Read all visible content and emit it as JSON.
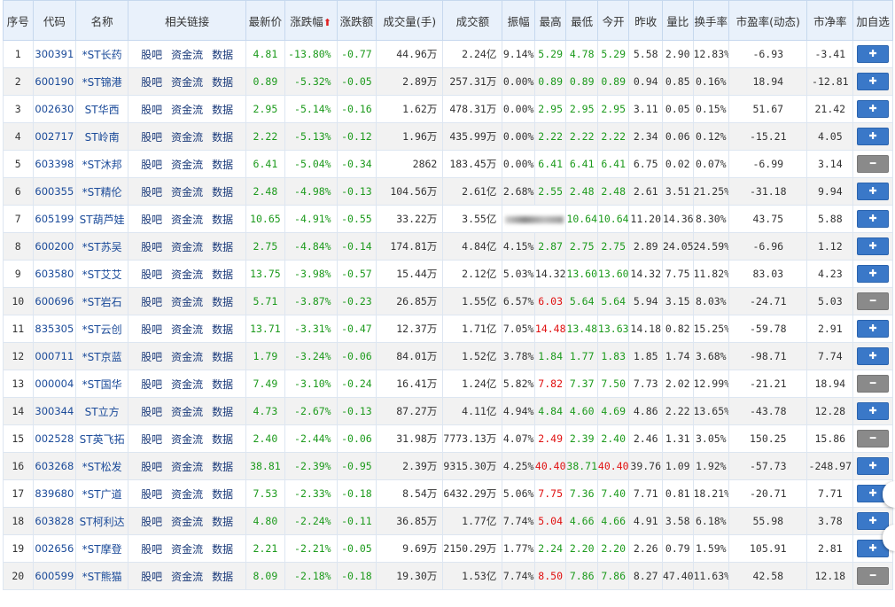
{
  "headers": [
    "序号",
    "代码",
    "名称",
    "相关链接",
    "最新价",
    "涨跌幅",
    "涨跌额",
    "成交量(手)",
    "成交额",
    "振幅",
    "最高",
    "最低",
    "今开",
    "昨收",
    "量比",
    "换手率",
    "市盈率(动态)",
    "市净率",
    "加自选"
  ],
  "sort_arrow": "⬆",
  "link_labels": [
    "股吧",
    "资金流",
    "数据"
  ],
  "rows": [
    {
      "idx": "1",
      "code": "300391",
      "name": "*ST长药",
      "price": "4.81",
      "pct": "-13.80%",
      "chg": "-0.77",
      "vol": "44.96万",
      "amt": "2.24亿",
      "amp": "9.14%",
      "high": "5.29",
      "low": "4.78",
      "open": "5.29",
      "prev": "5.58",
      "vr": "2.90",
      "turn": "12.83%",
      "pe": "-6.93",
      "pb": "-3.41",
      "added": false,
      "hc": "g",
      "lc": "g",
      "oc": "g"
    },
    {
      "idx": "2",
      "code": "600190",
      "name": "*ST锦港",
      "price": "0.89",
      "pct": "-5.32%",
      "chg": "-0.05",
      "vol": "2.89万",
      "amt": "257.31万",
      "amp": "0.00%",
      "high": "0.89",
      "low": "0.89",
      "open": "0.89",
      "prev": "0.94",
      "vr": "0.85",
      "turn": "0.16%",
      "pe": "18.94",
      "pb": "-12.81",
      "added": false,
      "hc": "g",
      "lc": "g",
      "oc": "g"
    },
    {
      "idx": "3",
      "code": "002630",
      "name": "ST华西",
      "price": "2.95",
      "pct": "-5.14%",
      "chg": "-0.16",
      "vol": "1.62万",
      "amt": "478.31万",
      "amp": "0.00%",
      "high": "2.95",
      "low": "2.95",
      "open": "2.95",
      "prev": "3.11",
      "vr": "0.05",
      "turn": "0.15%",
      "pe": "51.67",
      "pb": "21.42",
      "added": false,
      "hc": "g",
      "lc": "g",
      "oc": "g"
    },
    {
      "idx": "4",
      "code": "002717",
      "name": "ST岭南",
      "price": "2.22",
      "pct": "-5.13%",
      "chg": "-0.12",
      "vol": "1.96万",
      "amt": "435.99万",
      "amp": "0.00%",
      "high": "2.22",
      "low": "2.22",
      "open": "2.22",
      "prev": "2.34",
      "vr": "0.06",
      "turn": "0.12%",
      "pe": "-15.21",
      "pb": "4.05",
      "added": false,
      "hc": "g",
      "lc": "g",
      "oc": "g"
    },
    {
      "idx": "5",
      "code": "603398",
      "name": "*ST沐邦",
      "price": "6.41",
      "pct": "-5.04%",
      "chg": "-0.34",
      "vol": "2862",
      "amt": "183.45万",
      "amp": "0.00%",
      "high": "6.41",
      "low": "6.41",
      "open": "6.41",
      "prev": "6.75",
      "vr": "0.02",
      "turn": "0.07%",
      "pe": "-6.99",
      "pb": "3.14",
      "added": true,
      "hc": "g",
      "lc": "g",
      "oc": "g"
    },
    {
      "idx": "6",
      "code": "600355",
      "name": "*ST精伦",
      "price": "2.48",
      "pct": "-4.98%",
      "chg": "-0.13",
      "vol": "104.56万",
      "amt": "2.61亿",
      "amp": "2.68%",
      "high": "2.55",
      "low": "2.48",
      "open": "2.48",
      "prev": "2.61",
      "vr": "3.51",
      "turn": "21.25%",
      "pe": "-31.18",
      "pb": "9.94",
      "added": false,
      "hc": "g",
      "lc": "g",
      "oc": "g"
    },
    {
      "idx": "7",
      "code": "605199",
      "name": "ST葫芦娃",
      "price": "10.65",
      "pct": "-4.91%",
      "chg": "-0.55",
      "vol": "33.22万",
      "amt": "3.55亿",
      "amp": "",
      "high": "",
      "low": "10.64",
      "open": "10.64",
      "prev": "11.20",
      "vr": "14.36",
      "turn": "8.30%",
      "pe": "43.75",
      "pb": "5.88",
      "added": false,
      "hc": "g",
      "lc": "g",
      "oc": "g",
      "obscured": true
    },
    {
      "idx": "8",
      "code": "600200",
      "name": "*ST苏吴",
      "price": "2.75",
      "pct": "-4.84%",
      "chg": "-0.14",
      "vol": "174.81万",
      "amt": "4.84亿",
      "amp": "4.15%",
      "high": "2.87",
      "low": "2.75",
      "open": "2.75",
      "prev": "2.89",
      "vr": "24.05",
      "turn": "24.59%",
      "pe": "-6.96",
      "pb": "1.12",
      "added": false,
      "hc": "g",
      "lc": "g",
      "oc": "g"
    },
    {
      "idx": "9",
      "code": "603580",
      "name": "*ST艾艾",
      "price": "13.75",
      "pct": "-3.98%",
      "chg": "-0.57",
      "vol": "15.44万",
      "amt": "2.12亿",
      "amp": "5.03%",
      "high": "14.32",
      "low": "13.60",
      "open": "13.60",
      "prev": "14.32",
      "vr": "7.75",
      "turn": "11.82%",
      "pe": "83.03",
      "pb": "4.23",
      "added": false,
      "hc": "blk",
      "lc": "g",
      "oc": "g"
    },
    {
      "idx": "10",
      "code": "600696",
      "name": "*ST岩石",
      "price": "5.71",
      "pct": "-3.87%",
      "chg": "-0.23",
      "vol": "26.85万",
      "amt": "1.55亿",
      "amp": "6.57%",
      "high": "6.03",
      "low": "5.64",
      "open": "5.64",
      "prev": "5.94",
      "vr": "3.15",
      "turn": "8.03%",
      "pe": "-24.71",
      "pb": "5.03",
      "added": true,
      "hc": "red",
      "lc": "g",
      "oc": "g"
    },
    {
      "idx": "11",
      "code": "835305",
      "name": "*ST云创",
      "price": "13.71",
      "pct": "-3.31%",
      "chg": "-0.47",
      "vol": "12.37万",
      "amt": "1.71亿",
      "amp": "7.05%",
      "high": "14.48",
      "low": "13.48",
      "open": "13.63",
      "prev": "14.18",
      "vr": "0.82",
      "turn": "15.25%",
      "pe": "-59.78",
      "pb": "2.91",
      "added": false,
      "hc": "red",
      "lc": "g",
      "oc": "g"
    },
    {
      "idx": "12",
      "code": "000711",
      "name": "*ST京蓝",
      "price": "1.79",
      "pct": "-3.24%",
      "chg": "-0.06",
      "vol": "84.01万",
      "amt": "1.52亿",
      "amp": "3.78%",
      "high": "1.84",
      "low": "1.77",
      "open": "1.83",
      "prev": "1.85",
      "vr": "1.74",
      "turn": "3.68%",
      "pe": "-98.71",
      "pb": "7.74",
      "added": false,
      "hc": "g",
      "lc": "g",
      "oc": "g"
    },
    {
      "idx": "13",
      "code": "000004",
      "name": "*ST国华",
      "price": "7.49",
      "pct": "-3.10%",
      "chg": "-0.24",
      "vol": "16.41万",
      "amt": "1.24亿",
      "amp": "5.82%",
      "high": "7.82",
      "low": "7.37",
      "open": "7.50",
      "prev": "7.73",
      "vr": "2.02",
      "turn": "12.99%",
      "pe": "-21.21",
      "pb": "18.94",
      "added": true,
      "hc": "red",
      "lc": "g",
      "oc": "g"
    },
    {
      "idx": "14",
      "code": "300344",
      "name": "ST立方",
      "price": "4.73",
      "pct": "-2.67%",
      "chg": "-0.13",
      "vol": "87.27万",
      "amt": "4.11亿",
      "amp": "4.94%",
      "high": "4.84",
      "low": "4.60",
      "open": "4.69",
      "prev": "4.86",
      "vr": "2.22",
      "turn": "13.65%",
      "pe": "-43.78",
      "pb": "12.28",
      "added": false,
      "hc": "g",
      "lc": "g",
      "oc": "g"
    },
    {
      "idx": "15",
      "code": "002528",
      "name": "ST英飞拓",
      "price": "2.40",
      "pct": "-2.44%",
      "chg": "-0.06",
      "vol": "31.98万",
      "amt": "7773.13万",
      "amp": "4.07%",
      "high": "2.49",
      "low": "2.39",
      "open": "2.40",
      "prev": "2.46",
      "vr": "1.31",
      "turn": "3.05%",
      "pe": "150.25",
      "pb": "15.86",
      "added": true,
      "hc": "red",
      "lc": "g",
      "oc": "g"
    },
    {
      "idx": "16",
      "code": "603268",
      "name": "*ST松发",
      "price": "38.81",
      "pct": "-2.39%",
      "chg": "-0.95",
      "vol": "2.39万",
      "amt": "9315.30万",
      "amp": "4.25%",
      "high": "40.40",
      "low": "38.71",
      "open": "40.40",
      "prev": "39.76",
      "vr": "1.09",
      "turn": "1.92%",
      "pe": "-57.73",
      "pb": "-248.97",
      "added": false,
      "hc": "red",
      "lc": "g",
      "oc": "red"
    },
    {
      "idx": "17",
      "code": "839680",
      "name": "*ST广道",
      "price": "7.53",
      "pct": "-2.33%",
      "chg": "-0.18",
      "vol": "8.54万",
      "amt": "6432.29万",
      "amp": "5.06%",
      "high": "7.75",
      "low": "7.36",
      "open": "7.40",
      "prev": "7.71",
      "vr": "0.81",
      "turn": "18.21%",
      "pe": "-20.71",
      "pb": "7.71",
      "added": false,
      "hc": "red",
      "lc": "g",
      "oc": "g"
    },
    {
      "idx": "18",
      "code": "603828",
      "name": "ST柯利达",
      "price": "4.80",
      "pct": "-2.24%",
      "chg": "-0.11",
      "vol": "36.85万",
      "amt": "1.77亿",
      "amp": "7.74%",
      "high": "5.04",
      "low": "4.66",
      "open": "4.66",
      "prev": "4.91",
      "vr": "3.58",
      "turn": "6.18%",
      "pe": "55.98",
      "pb": "3.78",
      "added": false,
      "hc": "red",
      "lc": "g",
      "oc": "g"
    },
    {
      "idx": "19",
      "code": "002656",
      "name": "*ST摩登",
      "price": "2.21",
      "pct": "-2.21%",
      "chg": "-0.05",
      "vol": "9.69万",
      "amt": "2150.29万",
      "amp": "1.77%",
      "high": "2.24",
      "low": "2.20",
      "open": "2.20",
      "prev": "2.26",
      "vr": "0.79",
      "turn": "1.59%",
      "pe": "105.91",
      "pb": "2.81",
      "added": false,
      "hc": "g",
      "lc": "g",
      "oc": "g"
    },
    {
      "idx": "20",
      "code": "600599",
      "name": "*ST熊猫",
      "price": "8.09",
      "pct": "-2.18%",
      "chg": "-0.18",
      "vol": "19.30万",
      "amt": "1.53亿",
      "amp": "7.74%",
      "high": "8.50",
      "low": "7.86",
      "open": "7.86",
      "prev": "8.27",
      "vr": "47.40",
      "turn": "11.63%",
      "pe": "42.58",
      "pb": "12.18",
      "added": true,
      "hc": "red",
      "lc": "g",
      "oc": "g"
    }
  ],
  "colors": {
    "up": "#e01010",
    "down": "#1c9a1c",
    "btn_add": "#3a78c8",
    "btn_remove": "#8a8a8a"
  },
  "icons": {
    "add": "plus-icon",
    "remove": "minus-icon"
  }
}
